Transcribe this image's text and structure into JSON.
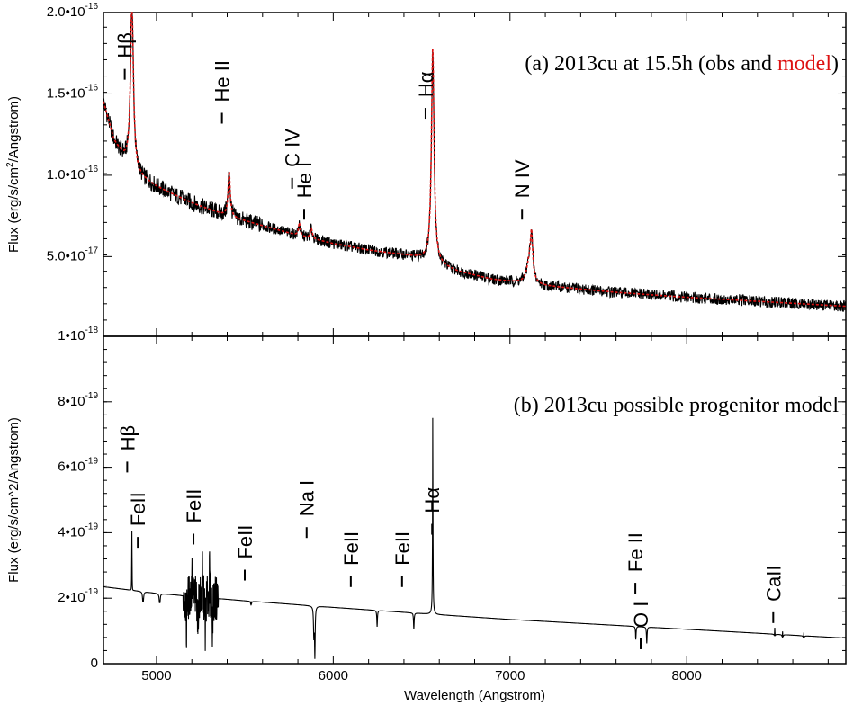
{
  "colors": {
    "observed": "#000000",
    "model": "#dd1111",
    "frame": "#000000"
  },
  "chart_data": [
    {
      "id": "panel-a",
      "type": "line",
      "title_parts": [
        "(a) 2013cu at 15.5h (obs and ",
        "model",
        ")"
      ],
      "ylabel": "Flux (erg/s/cm2/Angstrom)",
      "xlim": [
        4700,
        8900
      ],
      "ylim": [
        1e-18,
        2e-16
      ],
      "yticks": [
        {
          "value": 1e-18,
          "mant": "1",
          "exp": "-18"
        },
        {
          "value": 5e-17,
          "mant": "5.0",
          "exp": "-17"
        },
        {
          "value": 1e-16,
          "mant": "1.0",
          "exp": "-16"
        },
        {
          "value": 1.5e-16,
          "mant": "1.5",
          "exp": "-16"
        },
        {
          "value": 2e-16,
          "mant": "2.0",
          "exp": "-16"
        }
      ],
      "continuum": [
        [
          4700,
          1.45e-16
        ],
        [
          4760,
          1.21e-16
        ],
        [
          4860,
          1.02e-16
        ],
        [
          5000,
          9.3e-17
        ],
        [
          5200,
          8.3e-17
        ],
        [
          5400,
          7.5e-17
        ],
        [
          5600,
          6.9e-17
        ],
        [
          5800,
          6.3e-17
        ],
        [
          6000,
          5.8e-17
        ],
        [
          6200,
          5.4e-17
        ],
        [
          6400,
          5.1e-17
        ],
        [
          6500,
          4.9e-17
        ],
        [
          6700,
          4.1e-17
        ],
        [
          6900,
          3.6e-17
        ],
        [
          7200,
          3.2e-17
        ],
        [
          7600,
          2.8e-17
        ],
        [
          8000,
          2.5e-17
        ],
        [
          8400,
          2.25e-17
        ],
        [
          8900,
          1.95e-17
        ]
      ],
      "emission_lines": [
        {
          "center": 4861,
          "peak": 1.05e-16,
          "width": 10
        },
        {
          "center": 5411,
          "peak": 2.8e-17,
          "width": 7
        },
        {
          "center": 5808,
          "peak": 8e-18,
          "width": 6
        },
        {
          "center": 5876,
          "peak": 6e-18,
          "width": 7
        },
        {
          "center": 6563,
          "peak": 1.32e-16,
          "width": 9
        },
        {
          "center": 7109,
          "peak": 1.2e-17,
          "width": 18
        },
        {
          "center": 7122,
          "peak": 2.6e-17,
          "width": 8
        }
      ],
      "line_labels": [
        {
          "text": "Hβ",
          "x": 4861,
          "y": 1.72e-16
        },
        {
          "text": "He II",
          "x": 5411,
          "y": 1.45e-16
        },
        {
          "text": "C IV",
          "x": 5808,
          "y": 1.05e-16
        },
        {
          "text": "He I",
          "x": 5876,
          "y": 8.6e-17
        },
        {
          "text": "Hα",
          "x": 6563,
          "y": 1.48e-16
        },
        {
          "text": "N IV",
          "x": 7109,
          "y": 8.6e-17
        }
      ]
    },
    {
      "id": "panel-b",
      "type": "line",
      "title": "(b) 2013cu possible progenitor model",
      "ylabel": "Flux (erg/s/cm^2/Angstrom)",
      "xlabel": "Wavelength (Angstrom)",
      "xlim": [
        4700,
        8900
      ],
      "ylim": [
        0,
        1e-18
      ],
      "xticks": [
        5000,
        6000,
        7000,
        8000
      ],
      "yticks": [
        {
          "value": 0,
          "mant": "0",
          "exp": ""
        },
        {
          "value": 2e-19,
          "mant": "2",
          "exp": "-19"
        },
        {
          "value": 4e-19,
          "mant": "4",
          "exp": "-19"
        },
        {
          "value": 6e-19,
          "mant": "6",
          "exp": "-19"
        },
        {
          "value": 8e-19,
          "mant": "8",
          "exp": "-19"
        }
      ],
      "continuum": [
        [
          4700,
          2.35e-19
        ],
        [
          5000,
          2.15e-19
        ],
        [
          5500,
          1.92e-19
        ],
        [
          6000,
          1.72e-19
        ],
        [
          6500,
          1.53e-19
        ],
        [
          7000,
          1.35e-19
        ],
        [
          7500,
          1.2e-19
        ],
        [
          8000,
          1.05e-19
        ],
        [
          8500,
          9e-20
        ],
        [
          8900,
          7.8e-20
        ]
      ],
      "absorption_lines": [
        {
          "center": 4861,
          "depth": 2.2e-19,
          "width": 2
        },
        {
          "center": 4924,
          "depth": 1.6e-19,
          "width": 2
        },
        {
          "center": 5018,
          "depth": 1.4e-19,
          "width": 2
        },
        {
          "center": 5169,
          "depth": 1.2e-19,
          "width": 2
        },
        {
          "center": 5234,
          "depth": 1e-19,
          "width": 2
        },
        {
          "center": 5276,
          "depth": 1.1e-19,
          "width": 2
        },
        {
          "center": 5317,
          "depth": 1e-19,
          "width": 2
        },
        {
          "center": 5535,
          "depth": 6e-20,
          "width": 2
        },
        {
          "center": 5890,
          "depth": 1.6e-19,
          "width": 2
        },
        {
          "center": 5896,
          "depth": 1.5e-19,
          "width": 2
        },
        {
          "center": 6248,
          "depth": 5e-20,
          "width": 2
        },
        {
          "center": 6456,
          "depth": 5e-20,
          "width": 2
        },
        {
          "center": 7712,
          "depth": 4e-20,
          "width": 2
        },
        {
          "center": 7774,
          "depth": 5e-20,
          "width": 2
        },
        {
          "center": 8498,
          "depth": 7e-20,
          "width": 2
        },
        {
          "center": 8542,
          "depth": 7e-20,
          "width": 2
        },
        {
          "center": 8662,
          "depth": 6e-20,
          "width": 2
        }
      ],
      "emission_lines": [
        {
          "center": 4861,
          "peak": 4e-19,
          "width": 1.5
        },
        {
          "center": 4924,
          "peak": 1.4e-19,
          "width": 1.5
        },
        {
          "center": 5018,
          "peak": 1.2e-19,
          "width": 1.5
        },
        {
          "center": 5200,
          "peak": 1e-19,
          "width": 1.5
        },
        {
          "center": 5260,
          "peak": 9e-20,
          "width": 1.5
        },
        {
          "center": 5300,
          "peak": 9e-20,
          "width": 1.5
        },
        {
          "center": 5535,
          "peak": 6e-20,
          "width": 1.5
        },
        {
          "center": 5890,
          "peak": 7e-20,
          "width": 1.5
        },
        {
          "center": 6563,
          "peak": 6e-19,
          "width": 1.5
        },
        {
          "center": 8498,
          "peak": 9e-20,
          "width": 1.5
        },
        {
          "center": 8542,
          "peak": 8e-20,
          "width": 1.5
        },
        {
          "center": 8662,
          "peak": 7e-20,
          "width": 1.5
        }
      ],
      "line_labels": [
        {
          "text": "Hβ",
          "x": 4875,
          "y": 6.5e-19
        },
        {
          "text": "FeII",
          "x": 4935,
          "y": 4.2e-19
        },
        {
          "text": "FeII",
          "x": 5250,
          "y": 4.3e-19
        },
        {
          "text": "FeII",
          "x": 5540,
          "y": 3.2e-19
        },
        {
          "text": "Na I",
          "x": 5890,
          "y": 4.5e-19
        },
        {
          "text": "FeII",
          "x": 6140,
          "y": 3e-19
        },
        {
          "text": "FeII",
          "x": 6430,
          "y": 3e-19
        },
        {
          "text": "Hα",
          "x": 6600,
          "y": 4.6e-19
        },
        {
          "text": "Fe II",
          "x": 7750,
          "y": 2.8e-19
        },
        {
          "text": "O I",
          "x": 7780,
          "y": 1.1e-19
        },
        {
          "text": "CaII",
          "x": 8530,
          "y": 1.9e-19
        }
      ]
    }
  ]
}
